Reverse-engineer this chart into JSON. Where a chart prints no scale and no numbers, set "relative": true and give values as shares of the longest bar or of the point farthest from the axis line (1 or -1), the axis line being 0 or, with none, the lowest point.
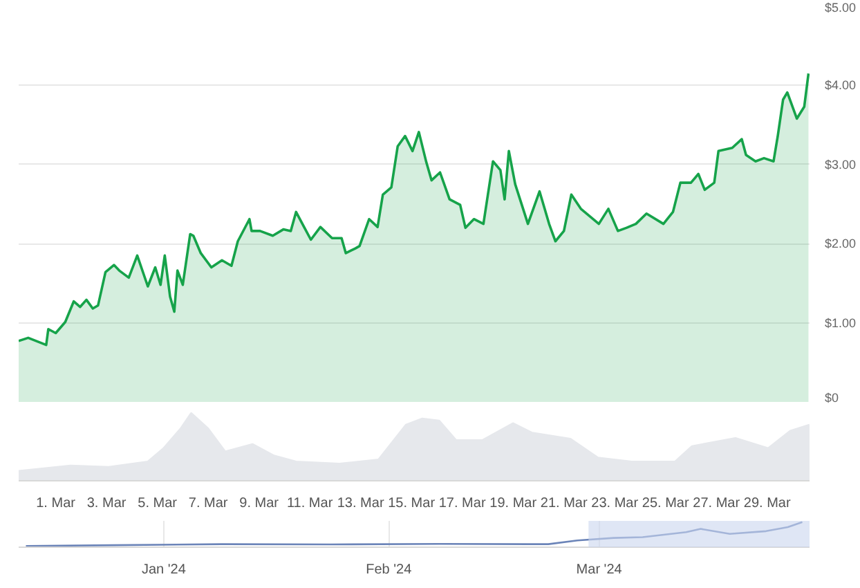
{
  "chart_data": [
    {
      "type": "area",
      "xlim": [
        "2024-02-28T13:00",
        "2024-03-30T16:00"
      ],
      "ylim": [
        0,
        5
      ],
      "yticks": [
        {
          "value": 0,
          "label": "$0"
        },
        {
          "value": 1,
          "label": "$1.00"
        },
        {
          "value": 2,
          "label": "$2.00"
        },
        {
          "value": 3,
          "label": "$3.00"
        },
        {
          "value": 4,
          "label": "$4.00"
        },
        {
          "value": 5,
          "label": "$5.00"
        }
      ],
      "grid": "y",
      "tick_labels": "y",
      "x": [
        "2024-02-28T13:00",
        "2024-02-28T22:00",
        "2024-02-29T15:00",
        "2024-02-29T17:00",
        "2024-03-01T00:00",
        "2024-03-01T09:00",
        "2024-03-01T17:00",
        "2024-03-01T23:00",
        "2024-03-02T05:00",
        "2024-03-02T11:00",
        "2024-03-02T16:00",
        "2024-03-02T23:00",
        "2024-03-03T07:00",
        "2024-03-03T12:00",
        "2024-03-03T21:00",
        "2024-03-04T05:00",
        "2024-03-04T15:00",
        "2024-03-04T22:00",
        "2024-03-05T03:00",
        "2024-03-05T07:00",
        "2024-03-05T12:00",
        "2024-03-05T16:00",
        "2024-03-05T19:00",
        "2024-03-06T00:00",
        "2024-03-06T07:00",
        "2024-03-06T10:00",
        "2024-03-06T17:00",
        "2024-03-07T03:00",
        "2024-03-07T13:00",
        "2024-03-07T22:00",
        "2024-03-08T04:00",
        "2024-03-08T15:00",
        "2024-03-08T17:00",
        "2024-03-09T01:00",
        "2024-03-09T13:00",
        "2024-03-09T23:00",
        "2024-03-10T06:00",
        "2024-03-10T11:00",
        "2024-03-10T19:00",
        "2024-03-11T01:00",
        "2024-03-11T10:00",
        "2024-03-11T21:00",
        "2024-03-12T06:00",
        "2024-03-12T10:00",
        "2024-03-12T19:00",
        "2024-03-12T23:00",
        "2024-03-13T08:00",
        "2024-03-13T16:00",
        "2024-03-13T21:00",
        "2024-03-14T05:00",
        "2024-03-14T11:00",
        "2024-03-14T18:00",
        "2024-03-15T01:00",
        "2024-03-15T07:00",
        "2024-03-15T14:00",
        "2024-03-15T19:00",
        "2024-03-16T03:00",
        "2024-03-16T12:00",
        "2024-03-16T22:00",
        "2024-03-17T03:00",
        "2024-03-17T11:00",
        "2024-03-17T20:00",
        "2024-03-18T05:00",
        "2024-03-18T12:00",
        "2024-03-18T16:00",
        "2024-03-18T20:00",
        "2024-03-19T02:00",
        "2024-03-19T14:00",
        "2024-03-20T01:00",
        "2024-03-20T10:00",
        "2024-03-20T16:00",
        "2024-03-21T00:00",
        "2024-03-21T07:00",
        "2024-03-21T16:00",
        "2024-03-22T09:00",
        "2024-03-22T18:00",
        "2024-03-23T03:00",
        "2024-03-23T11:00",
        "2024-03-23T20:00",
        "2024-03-24T06:00",
        "2024-03-24T22:00",
        "2024-03-25T07:00",
        "2024-03-25T14:00",
        "2024-03-26T00:00",
        "2024-03-26T07:00",
        "2024-03-26T13:00",
        "2024-03-26T22:00",
        "2024-03-27T02:00",
        "2024-03-27T15:00",
        "2024-03-28T00:00",
        "2024-03-28T04:00",
        "2024-03-28T13:00",
        "2024-03-28T21:00",
        "2024-03-29T06:00",
        "2024-03-29T10:00",
        "2024-03-29T15:00",
        "2024-03-29T19:00",
        "2024-03-30T04:00",
        "2024-03-30T11:00",
        "2024-03-30T15:00"
      ],
      "series": [
        {
          "color": "#16a34a",
          "values": [
            0.77,
            0.81,
            0.72,
            0.92,
            0.87,
            1.01,
            1.27,
            1.2,
            1.29,
            1.18,
            1.22,
            1.64,
            1.73,
            1.66,
            1.57,
            1.85,
            1.46,
            1.7,
            1.48,
            1.85,
            1.33,
            1.14,
            1.66,
            1.48,
            2.12,
            2.1,
            1.88,
            1.7,
            1.79,
            1.72,
            2.03,
            2.31,
            2.16,
            2.16,
            2.1,
            2.18,
            2.16,
            2.4,
            2.2,
            2.05,
            2.21,
            2.07,
            2.07,
            1.88,
            1.94,
            1.97,
            2.31,
            2.21,
            2.62,
            2.71,
            3.23,
            3.36,
            3.17,
            3.41,
            3.03,
            2.8,
            2.9,
            2.56,
            2.49,
            2.2,
            2.31,
            2.25,
            3.04,
            2.93,
            2.56,
            3.17,
            2.75,
            2.25,
            2.66,
            2.25,
            2.03,
            2.16,
            2.62,
            2.44,
            2.25,
            2.44,
            2.16,
            2.2,
            2.25,
            2.38,
            2.25,
            2.4,
            2.77,
            2.77,
            2.88,
            2.68,
            2.77,
            3.17,
            3.21,
            3.32,
            3.12,
            3.04,
            3.08,
            3.04,
            3.36,
            3.82,
            3.91,
            3.58,
            3.73,
            4.15
          ]
        }
      ]
    },
    {
      "type": "area",
      "relative": true,
      "xlim": [
        "2024-02-28T13:00",
        "2024-03-30T16:00"
      ],
      "tick_labels": "x",
      "xticks": [
        {
          "value": "2024-03-01",
          "label": "1. Mar"
        },
        {
          "value": "2024-03-03",
          "label": "3. Mar"
        },
        {
          "value": "2024-03-05",
          "label": "5. Mar"
        },
        {
          "value": "2024-03-07",
          "label": "7. Mar"
        },
        {
          "value": "2024-03-09",
          "label": "9. Mar"
        },
        {
          "value": "2024-03-11",
          "label": "11. Mar"
        },
        {
          "value": "2024-03-13",
          "label": "13. Mar"
        },
        {
          "value": "2024-03-15",
          "label": "15. Mar"
        },
        {
          "value": "2024-03-17",
          "label": "17. Mar"
        },
        {
          "value": "2024-03-19",
          "label": "19. Mar"
        },
        {
          "value": "2024-03-21",
          "label": "21. Mar"
        },
        {
          "value": "2024-03-23",
          "label": "23. Mar"
        },
        {
          "value": "2024-03-25",
          "label": "25. Mar"
        },
        {
          "value": "2024-03-27",
          "label": "27. Mar"
        },
        {
          "value": "2024-03-29",
          "label": "29. Mar"
        }
      ],
      "x": [
        "2024-02-28T13:00",
        "2024-03-01T14:00",
        "2024-03-03T02:00",
        "2024-03-04T15:00",
        "2024-03-05T06:00",
        "2024-03-05T22:00",
        "2024-03-06T08:00",
        "2024-03-07T00:00",
        "2024-03-07T16:00",
        "2024-03-08T18:00",
        "2024-03-09T14:00",
        "2024-03-10T11:00",
        "2024-03-12T04:00",
        "2024-03-13T17:00",
        "2024-03-14T19:00",
        "2024-03-15T10:00",
        "2024-03-16T02:00",
        "2024-03-16T18:00",
        "2024-03-17T19:00",
        "2024-03-19T00:00",
        "2024-03-19T18:00",
        "2024-03-21T06:00",
        "2024-03-22T08:00",
        "2024-03-23T16:00",
        "2024-03-25T09:00",
        "2024-03-26T01:00",
        "2024-03-27T18:00",
        "2024-03-29T01:00",
        "2024-03-29T22:00",
        "2024-03-30T16:00"
      ],
      "series": [
        {
          "color": "#e6e8ec",
          "values": [
            0.14,
            0.22,
            0.2,
            0.28,
            0.48,
            0.77,
            1.0,
            0.77,
            0.43,
            0.54,
            0.37,
            0.28,
            0.25,
            0.31,
            0.83,
            0.92,
            0.89,
            0.6,
            0.6,
            0.85,
            0.71,
            0.62,
            0.34,
            0.28,
            0.28,
            0.51,
            0.63,
            0.48,
            0.74,
            0.83
          ]
        }
      ]
    },
    {
      "type": "line",
      "relative": true,
      "xlim": [
        "2023-12-12",
        "2024-03-30"
      ],
      "tick_labels": "x",
      "grid": "x",
      "xticks": [
        {
          "value": "2024-01-01",
          "label": "Jan '24"
        },
        {
          "value": "2024-02-01",
          "label": "Feb '24"
        },
        {
          "value": "2024-03-01",
          "label": "Mar '24"
        }
      ],
      "bands": [
        {
          "axis": "x",
          "from": "2024-02-28T13:00",
          "to": "2024-03-30",
          "color": "#c9d6ee"
        }
      ],
      "x": [
        "2023-12-13",
        "2023-12-25",
        "2024-01-09",
        "2024-01-24",
        "2024-02-08",
        "2024-02-23",
        "2024-02-27",
        "2024-03-03",
        "2024-03-07",
        "2024-03-13",
        "2024-03-15",
        "2024-03-19",
        "2024-03-24",
        "2024-03-27",
        "2024-03-29"
      ],
      "series": [
        {
          "color": "#6b84b8",
          "values": [
            0.05,
            0.08,
            0.12,
            0.11,
            0.13,
            0.12,
            0.27,
            0.37,
            0.4,
            0.6,
            0.73,
            0.53,
            0.64,
            0.8,
            1.0
          ]
        }
      ]
    }
  ]
}
